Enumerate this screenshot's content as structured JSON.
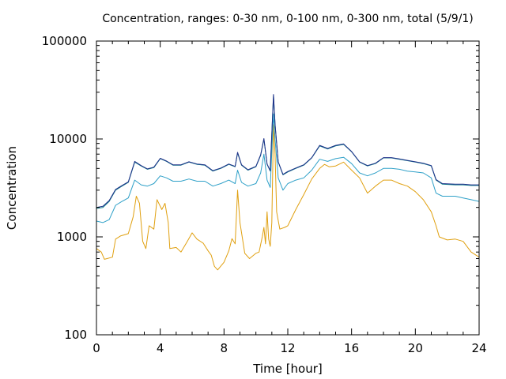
{
  "chart_data": {
    "type": "line",
    "title": "Concentration, ranges: 0-30 nm, 0-100 nm, 0-300 nm, total (5/9/1)",
    "xlabel": "Time [hour]",
    "ylabel": "Concentration",
    "xlim": [
      0,
      24
    ],
    "ylim": [
      100,
      100000
    ],
    "yscale": "log",
    "grid": false,
    "x_ticks": [
      "0",
      "4",
      "8",
      "12",
      "16",
      "20",
      "24"
    ],
    "x_tick_values": [
      0,
      4,
      8,
      12,
      16,
      20,
      24
    ],
    "y_ticks": [
      "100",
      "1000",
      "10000",
      "100000"
    ],
    "y_tick_values": [
      100,
      1000,
      10000,
      100000
    ],
    "series": [
      {
        "color": "#e0a010",
        "points": [
          [
            0,
            760
          ],
          [
            0.3,
            700
          ],
          [
            0.5,
            590
          ],
          [
            1,
            620
          ],
          [
            1.2,
            950
          ],
          [
            1.5,
            1020
          ],
          [
            2,
            1080
          ],
          [
            2.3,
            1600
          ],
          [
            2.5,
            2600
          ],
          [
            2.7,
            2200
          ],
          [
            2.9,
            900
          ],
          [
            3.1,
            760
          ],
          [
            3.3,
            1300
          ],
          [
            3.6,
            1200
          ],
          [
            3.8,
            2400
          ],
          [
            4.1,
            1900
          ],
          [
            4.3,
            2200
          ],
          [
            4.5,
            1400
          ],
          [
            4.6,
            760
          ],
          [
            5,
            780
          ],
          [
            5.3,
            700
          ],
          [
            5.7,
            900
          ],
          [
            6,
            1100
          ],
          [
            6.3,
            950
          ],
          [
            6.7,
            860
          ],
          [
            7,
            720
          ],
          [
            7.2,
            650
          ],
          [
            7.4,
            500
          ],
          [
            7.6,
            460
          ],
          [
            8,
            550
          ],
          [
            8.3,
            720
          ],
          [
            8.5,
            960
          ],
          [
            8.7,
            850
          ],
          [
            8.85,
            3000
          ],
          [
            9,
            1400
          ],
          [
            9.3,
            680
          ],
          [
            9.6,
            600
          ],
          [
            10,
            680
          ],
          [
            10.2,
            700
          ],
          [
            10.4,
            1000
          ],
          [
            10.5,
            1250
          ],
          [
            10.6,
            850
          ],
          [
            10.7,
            1800
          ],
          [
            10.8,
            950
          ],
          [
            10.9,
            800
          ],
          [
            11,
            1400
          ],
          [
            11.1,
            14000
          ],
          [
            11.2,
            7000
          ],
          [
            11.3,
            1800
          ],
          [
            11.5,
            1200
          ],
          [
            11.8,
            1250
          ],
          [
            12,
            1300
          ],
          [
            12.5,
            1900
          ],
          [
            13,
            2700
          ],
          [
            13.5,
            3900
          ],
          [
            14,
            5000
          ],
          [
            14.3,
            5500
          ],
          [
            14.6,
            5200
          ],
          [
            15,
            5300
          ],
          [
            15.5,
            5800
          ],
          [
            16,
            4800
          ],
          [
            16.5,
            4000
          ],
          [
            17,
            2800
          ],
          [
            17.5,
            3300
          ],
          [
            18,
            3800
          ],
          [
            18.5,
            3800
          ],
          [
            19,
            3500
          ],
          [
            19.5,
            3300
          ],
          [
            20,
            2900
          ],
          [
            20.5,
            2400
          ],
          [
            21,
            1800
          ],
          [
            21.3,
            1300
          ],
          [
            21.5,
            1000
          ],
          [
            22,
            930
          ],
          [
            22.5,
            950
          ],
          [
            23,
            900
          ],
          [
            23.5,
            700
          ],
          [
            24,
            620
          ]
        ]
      },
      {
        "color": "#2ea0c8",
        "points": [
          [
            0,
            1450
          ],
          [
            0.4,
            1400
          ],
          [
            0.8,
            1500
          ],
          [
            1.2,
            2100
          ],
          [
            1.6,
            2300
          ],
          [
            2,
            2500
          ],
          [
            2.4,
            3800
          ],
          [
            2.8,
            3400
          ],
          [
            3.2,
            3300
          ],
          [
            3.6,
            3500
          ],
          [
            4,
            4200
          ],
          [
            4.4,
            4000
          ],
          [
            4.8,
            3700
          ],
          [
            5.3,
            3700
          ],
          [
            5.8,
            3900
          ],
          [
            6.3,
            3700
          ],
          [
            6.8,
            3700
          ],
          [
            7.3,
            3300
          ],
          [
            7.8,
            3500
          ],
          [
            8.3,
            3800
          ],
          [
            8.7,
            3500
          ],
          [
            8.85,
            4800
          ],
          [
            9.1,
            3600
          ],
          [
            9.5,
            3300
          ],
          [
            10,
            3500
          ],
          [
            10.3,
            4500
          ],
          [
            10.5,
            7000
          ],
          [
            10.7,
            3800
          ],
          [
            10.9,
            3200
          ],
          [
            11.1,
            18000
          ],
          [
            11.2,
            10000
          ],
          [
            11.4,
            4000
          ],
          [
            11.7,
            3000
          ],
          [
            12,
            3500
          ],
          [
            12.5,
            3800
          ],
          [
            13,
            4000
          ],
          [
            13.5,
            4800
          ],
          [
            14,
            6200
          ],
          [
            14.5,
            5900
          ],
          [
            15,
            6300
          ],
          [
            15.5,
            6500
          ],
          [
            16,
            5600
          ],
          [
            16.5,
            4500
          ],
          [
            17,
            4200
          ],
          [
            17.5,
            4500
          ],
          [
            18,
            5000
          ],
          [
            18.5,
            5000
          ],
          [
            19,
            4900
          ],
          [
            19.5,
            4700
          ],
          [
            20,
            4600
          ],
          [
            20.5,
            4500
          ],
          [
            21,
            4000
          ],
          [
            21.3,
            2800
          ],
          [
            21.7,
            2600
          ],
          [
            22.5,
            2600
          ],
          [
            23,
            2500
          ],
          [
            23.5,
            2400
          ],
          [
            24,
            2300
          ]
        ]
      },
      {
        "color": "#10808a",
        "points": [
          [
            0,
            1950
          ],
          [
            0.4,
            2000
          ],
          [
            0.8,
            2300
          ],
          [
            1.2,
            3000
          ],
          [
            1.6,
            3300
          ],
          [
            2,
            3600
          ],
          [
            2.4,
            5800
          ],
          [
            2.8,
            5300
          ],
          [
            3.2,
            4900
          ],
          [
            3.6,
            5100
          ],
          [
            4,
            6300
          ],
          [
            4.4,
            5900
          ],
          [
            4.8,
            5400
          ],
          [
            5.3,
            5400
          ],
          [
            5.8,
            5800
          ],
          [
            6.3,
            5500
          ],
          [
            6.8,
            5400
          ],
          [
            7.3,
            4700
          ],
          [
            7.8,
            5000
          ],
          [
            8.3,
            5500
          ],
          [
            8.7,
            5200
          ],
          [
            8.85,
            7200
          ],
          [
            9.1,
            5400
          ],
          [
            9.5,
            4800
          ],
          [
            10,
            5200
          ],
          [
            10.3,
            6800
          ],
          [
            10.5,
            10000
          ],
          [
            10.7,
            5500
          ],
          [
            10.9,
            4700
          ],
          [
            11.1,
            28000
          ],
          [
            11.2,
            14000
          ],
          [
            11.4,
            5800
          ],
          [
            11.7,
            4300
          ],
          [
            12,
            4600
          ],
          [
            12.5,
            5000
          ],
          [
            13,
            5400
          ],
          [
            13.5,
            6400
          ],
          [
            14,
            8500
          ],
          [
            14.5,
            7900
          ],
          [
            15,
            8500
          ],
          [
            15.5,
            8800
          ],
          [
            16,
            7400
          ],
          [
            16.5,
            5800
          ],
          [
            17,
            5300
          ],
          [
            17.5,
            5600
          ],
          [
            18,
            6400
          ],
          [
            18.5,
            6400
          ],
          [
            19,
            6200
          ],
          [
            19.5,
            6000
          ],
          [
            20,
            5800
          ],
          [
            20.5,
            5600
          ],
          [
            21,
            5300
          ],
          [
            21.3,
            3800
          ],
          [
            21.7,
            3450
          ],
          [
            22.5,
            3400
          ],
          [
            23,
            3400
          ],
          [
            23.5,
            3350
          ],
          [
            24,
            3350
          ]
        ]
      },
      {
        "color": "#20308a",
        "points": [
          [
            0,
            2000
          ],
          [
            0.4,
            2050
          ],
          [
            0.8,
            2350
          ],
          [
            1.2,
            3050
          ],
          [
            1.6,
            3350
          ],
          [
            2,
            3650
          ],
          [
            2.4,
            5900
          ],
          [
            2.8,
            5350
          ],
          [
            3.2,
            4950
          ],
          [
            3.6,
            5150
          ],
          [
            4,
            6350
          ],
          [
            4.4,
            5950
          ],
          [
            4.8,
            5450
          ],
          [
            5.3,
            5450
          ],
          [
            5.8,
            5850
          ],
          [
            6.3,
            5550
          ],
          [
            6.8,
            5450
          ],
          [
            7.3,
            4750
          ],
          [
            7.8,
            5050
          ],
          [
            8.3,
            5550
          ],
          [
            8.7,
            5250
          ],
          [
            8.85,
            7300
          ],
          [
            9.1,
            5450
          ],
          [
            9.5,
            4850
          ],
          [
            10,
            5250
          ],
          [
            10.3,
            6900
          ],
          [
            10.5,
            10100
          ],
          [
            10.7,
            5550
          ],
          [
            10.9,
            4750
          ],
          [
            11.1,
            28500
          ],
          [
            11.2,
            14200
          ],
          [
            11.4,
            5850
          ],
          [
            11.7,
            4350
          ],
          [
            12,
            4650
          ],
          [
            12.5,
            5050
          ],
          [
            13,
            5450
          ],
          [
            13.5,
            6450
          ],
          [
            14,
            8600
          ],
          [
            14.5,
            8000
          ],
          [
            15,
            8600
          ],
          [
            15.5,
            8900
          ],
          [
            16,
            7450
          ],
          [
            16.5,
            5850
          ],
          [
            17,
            5350
          ],
          [
            17.5,
            5650
          ],
          [
            18,
            6450
          ],
          [
            18.5,
            6450
          ],
          [
            19,
            6250
          ],
          [
            19.5,
            6050
          ],
          [
            20,
            5850
          ],
          [
            20.5,
            5650
          ],
          [
            21,
            5350
          ],
          [
            21.3,
            3850
          ],
          [
            21.7,
            3500
          ],
          [
            22.5,
            3450
          ],
          [
            23,
            3450
          ],
          [
            23.5,
            3400
          ],
          [
            24,
            3400
          ]
        ]
      }
    ]
  }
}
